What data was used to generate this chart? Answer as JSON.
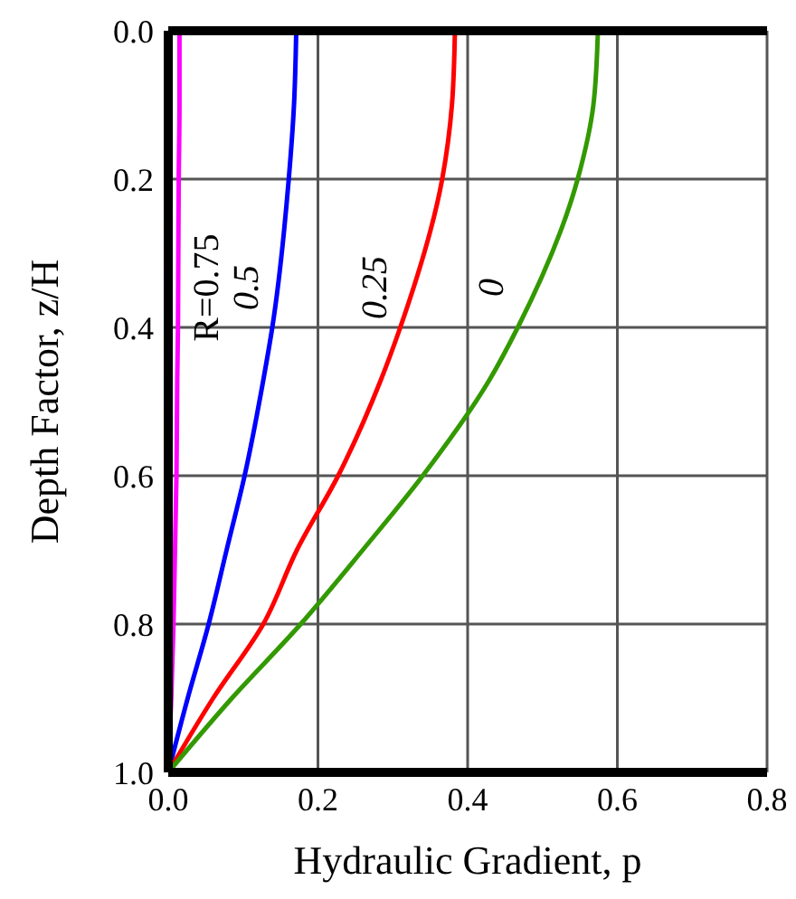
{
  "chart_data": {
    "type": "line",
    "xlabel": "Hydraulic Gradient,  p",
    "ylabel": "Depth Factor,  z/H",
    "xlim": [
      0,
      0.8
    ],
    "xticks": [
      {
        "value": 0,
        "label": "0.0"
      },
      {
        "value": 0.2,
        "label": "0.2"
      },
      {
        "value": 0.4,
        "label": "0.4"
      },
      {
        "value": 0.6,
        "label": "0.6"
      },
      {
        "value": 0.8,
        "label": "0.8"
      }
    ],
    "ylim": [
      1,
      0
    ],
    "yticks": [
      {
        "value": 0,
        "label": "0.0"
      },
      {
        "value": 0.2,
        "label": "0.2"
      },
      {
        "value": 0.4,
        "label": "0.4"
      },
      {
        "value": 0.6,
        "label": "0.6"
      },
      {
        "value": 0.8,
        "label": "0.8"
      },
      {
        "value": 1,
        "label": "1.0"
      }
    ],
    "grid": true,
    "marker": "none",
    "line_style": "solid",
    "series": [
      {
        "name": "R=0.75",
        "color": "#ff00ff",
        "x": [
          0.015,
          0.015,
          0.014,
          0.013,
          0.012,
          0.011,
          0.009,
          0.007,
          0.004,
          0
        ],
        "values": [
          0,
          0.1,
          0.2,
          0.4,
          0.471,
          0.6,
          0.7,
          0.8,
          0.9,
          1
        ]
      },
      {
        "name": "0.5",
        "color": "#0000ff",
        "x": [
          0.171,
          0.168,
          0.161,
          0.139,
          0.127,
          0.102,
          0.078,
          0.054,
          0.026,
          0
        ],
        "values": [
          0,
          0.1,
          0.2,
          0.4,
          0.471,
          0.6,
          0.7,
          0.8,
          0.9,
          1
        ]
      },
      {
        "name": "0.25",
        "color": "#ff0000",
        "x": [
          0.383,
          0.379,
          0.366,
          0.31,
          0.284,
          0.227,
          0.172,
          0.127,
          0.06,
          0
        ],
        "values": [
          0,
          0.1,
          0.2,
          0.4,
          0.471,
          0.6,
          0.7,
          0.8,
          0.9,
          1
        ]
      },
      {
        "name": "0",
        "color": "#339900",
        "x": [
          0.574,
          0.568,
          0.547,
          0.467,
          0.429,
          0.34,
          0.26,
          0.177,
          0.085,
          0
        ],
        "values": [
          0,
          0.1,
          0.2,
          0.4,
          0.471,
          0.6,
          0.7,
          0.8,
          0.9,
          1
        ]
      }
    ]
  }
}
